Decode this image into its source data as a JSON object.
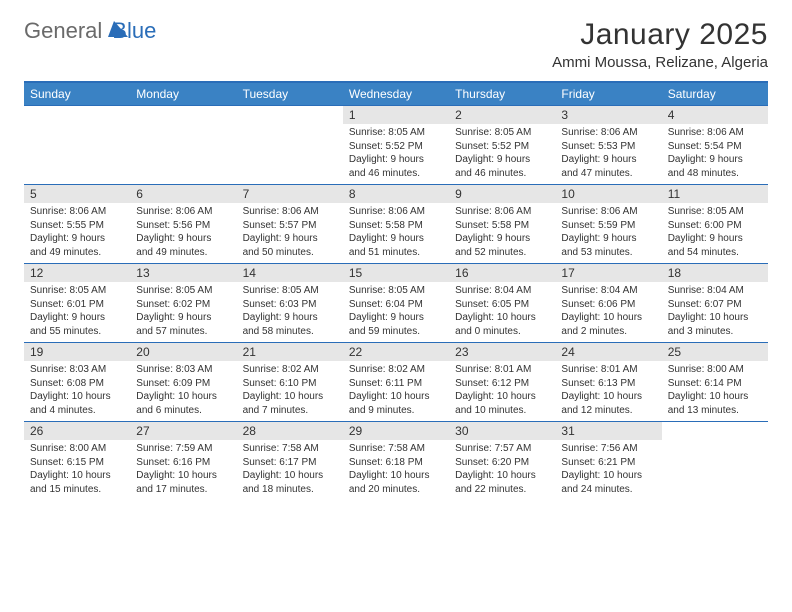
{
  "logo": {
    "general": "General",
    "blue": "Blue"
  },
  "title": "January 2025",
  "location": "Ammi Moussa, Relizane, Algeria",
  "colors": {
    "header_bg": "#3a82c4",
    "border": "#2a6db8",
    "daynum_bg": "#e6e6e6",
    "text": "#333333",
    "white": "#ffffff",
    "logo_gray": "#6a6a6a"
  },
  "weekdays": [
    "Sunday",
    "Monday",
    "Tuesday",
    "Wednesday",
    "Thursday",
    "Friday",
    "Saturday"
  ],
  "weeks": [
    [
      {
        "day": "",
        "sunrise": "",
        "sunset": "",
        "daylight": ""
      },
      {
        "day": "",
        "sunrise": "",
        "sunset": "",
        "daylight": ""
      },
      {
        "day": "",
        "sunrise": "",
        "sunset": "",
        "daylight": ""
      },
      {
        "day": "1",
        "sunrise": "Sunrise: 8:05 AM",
        "sunset": "Sunset: 5:52 PM",
        "daylight": "Daylight: 9 hours and 46 minutes."
      },
      {
        "day": "2",
        "sunrise": "Sunrise: 8:05 AM",
        "sunset": "Sunset: 5:52 PM",
        "daylight": "Daylight: 9 hours and 46 minutes."
      },
      {
        "day": "3",
        "sunrise": "Sunrise: 8:06 AM",
        "sunset": "Sunset: 5:53 PM",
        "daylight": "Daylight: 9 hours and 47 minutes."
      },
      {
        "day": "4",
        "sunrise": "Sunrise: 8:06 AM",
        "sunset": "Sunset: 5:54 PM",
        "daylight": "Daylight: 9 hours and 48 minutes."
      }
    ],
    [
      {
        "day": "5",
        "sunrise": "Sunrise: 8:06 AM",
        "sunset": "Sunset: 5:55 PM",
        "daylight": "Daylight: 9 hours and 49 minutes."
      },
      {
        "day": "6",
        "sunrise": "Sunrise: 8:06 AM",
        "sunset": "Sunset: 5:56 PM",
        "daylight": "Daylight: 9 hours and 49 minutes."
      },
      {
        "day": "7",
        "sunrise": "Sunrise: 8:06 AM",
        "sunset": "Sunset: 5:57 PM",
        "daylight": "Daylight: 9 hours and 50 minutes."
      },
      {
        "day": "8",
        "sunrise": "Sunrise: 8:06 AM",
        "sunset": "Sunset: 5:58 PM",
        "daylight": "Daylight: 9 hours and 51 minutes."
      },
      {
        "day": "9",
        "sunrise": "Sunrise: 8:06 AM",
        "sunset": "Sunset: 5:58 PM",
        "daylight": "Daylight: 9 hours and 52 minutes."
      },
      {
        "day": "10",
        "sunrise": "Sunrise: 8:06 AM",
        "sunset": "Sunset: 5:59 PM",
        "daylight": "Daylight: 9 hours and 53 minutes."
      },
      {
        "day": "11",
        "sunrise": "Sunrise: 8:05 AM",
        "sunset": "Sunset: 6:00 PM",
        "daylight": "Daylight: 9 hours and 54 minutes."
      }
    ],
    [
      {
        "day": "12",
        "sunrise": "Sunrise: 8:05 AM",
        "sunset": "Sunset: 6:01 PM",
        "daylight": "Daylight: 9 hours and 55 minutes."
      },
      {
        "day": "13",
        "sunrise": "Sunrise: 8:05 AM",
        "sunset": "Sunset: 6:02 PM",
        "daylight": "Daylight: 9 hours and 57 minutes."
      },
      {
        "day": "14",
        "sunrise": "Sunrise: 8:05 AM",
        "sunset": "Sunset: 6:03 PM",
        "daylight": "Daylight: 9 hours and 58 minutes."
      },
      {
        "day": "15",
        "sunrise": "Sunrise: 8:05 AM",
        "sunset": "Sunset: 6:04 PM",
        "daylight": "Daylight: 9 hours and 59 minutes."
      },
      {
        "day": "16",
        "sunrise": "Sunrise: 8:04 AM",
        "sunset": "Sunset: 6:05 PM",
        "daylight": "Daylight: 10 hours and 0 minutes."
      },
      {
        "day": "17",
        "sunrise": "Sunrise: 8:04 AM",
        "sunset": "Sunset: 6:06 PM",
        "daylight": "Daylight: 10 hours and 2 minutes."
      },
      {
        "day": "18",
        "sunrise": "Sunrise: 8:04 AM",
        "sunset": "Sunset: 6:07 PM",
        "daylight": "Daylight: 10 hours and 3 minutes."
      }
    ],
    [
      {
        "day": "19",
        "sunrise": "Sunrise: 8:03 AM",
        "sunset": "Sunset: 6:08 PM",
        "daylight": "Daylight: 10 hours and 4 minutes."
      },
      {
        "day": "20",
        "sunrise": "Sunrise: 8:03 AM",
        "sunset": "Sunset: 6:09 PM",
        "daylight": "Daylight: 10 hours and 6 minutes."
      },
      {
        "day": "21",
        "sunrise": "Sunrise: 8:02 AM",
        "sunset": "Sunset: 6:10 PM",
        "daylight": "Daylight: 10 hours and 7 minutes."
      },
      {
        "day": "22",
        "sunrise": "Sunrise: 8:02 AM",
        "sunset": "Sunset: 6:11 PM",
        "daylight": "Daylight: 10 hours and 9 minutes."
      },
      {
        "day": "23",
        "sunrise": "Sunrise: 8:01 AM",
        "sunset": "Sunset: 6:12 PM",
        "daylight": "Daylight: 10 hours and 10 minutes."
      },
      {
        "day": "24",
        "sunrise": "Sunrise: 8:01 AM",
        "sunset": "Sunset: 6:13 PM",
        "daylight": "Daylight: 10 hours and 12 minutes."
      },
      {
        "day": "25",
        "sunrise": "Sunrise: 8:00 AM",
        "sunset": "Sunset: 6:14 PM",
        "daylight": "Daylight: 10 hours and 13 minutes."
      }
    ],
    [
      {
        "day": "26",
        "sunrise": "Sunrise: 8:00 AM",
        "sunset": "Sunset: 6:15 PM",
        "daylight": "Daylight: 10 hours and 15 minutes."
      },
      {
        "day": "27",
        "sunrise": "Sunrise: 7:59 AM",
        "sunset": "Sunset: 6:16 PM",
        "daylight": "Daylight: 10 hours and 17 minutes."
      },
      {
        "day": "28",
        "sunrise": "Sunrise: 7:58 AM",
        "sunset": "Sunset: 6:17 PM",
        "daylight": "Daylight: 10 hours and 18 minutes."
      },
      {
        "day": "29",
        "sunrise": "Sunrise: 7:58 AM",
        "sunset": "Sunset: 6:18 PM",
        "daylight": "Daylight: 10 hours and 20 minutes."
      },
      {
        "day": "30",
        "sunrise": "Sunrise: 7:57 AM",
        "sunset": "Sunset: 6:20 PM",
        "daylight": "Daylight: 10 hours and 22 minutes."
      },
      {
        "day": "31",
        "sunrise": "Sunrise: 7:56 AM",
        "sunset": "Sunset: 6:21 PM",
        "daylight": "Daylight: 10 hours and 24 minutes."
      },
      {
        "day": "",
        "sunrise": "",
        "sunset": "",
        "daylight": ""
      }
    ]
  ]
}
